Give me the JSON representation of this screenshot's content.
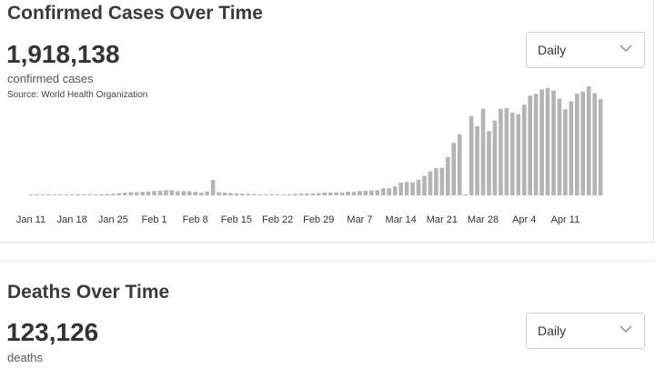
{
  "cases_section": {
    "title": "Confirmed Cases Over Time",
    "total": "1,918,138",
    "total_label": "confirmed cases",
    "source": "Source:  World Health Organization",
    "dropdown_value": "Daily"
  },
  "deaths_section": {
    "title": "Deaths Over Time",
    "total": "123,126",
    "total_label": "deaths",
    "dropdown_value": "Daily"
  },
  "colors": {
    "bar": "#b4b4b4",
    "baseline": "#cccccc"
  },
  "chart_data": {
    "type": "bar",
    "title": "Confirmed Cases Over Time",
    "xlabel": "",
    "ylabel": "",
    "x_start": "Jan 11",
    "x_end": "Apr 14",
    "ylim": [
      0,
      102000
    ],
    "grid": false,
    "legend": "none",
    "tick_labels": [
      {
        "label": "Jan 11",
        "index": 0
      },
      {
        "label": "Jan 18",
        "index": 7
      },
      {
        "label": "Jan 25",
        "index": 14
      },
      {
        "label": "Feb 1",
        "index": 21
      },
      {
        "label": "Feb 8",
        "index": 28
      },
      {
        "label": "Feb 15",
        "index": 35
      },
      {
        "label": "Feb 22",
        "index": 42
      },
      {
        "label": "Feb 29",
        "index": 49
      },
      {
        "label": "Mar 7",
        "index": 56
      },
      {
        "label": "Mar 14",
        "index": 63
      },
      {
        "label": "Mar 21",
        "index": 70
      },
      {
        "label": "Mar 28",
        "index": 77
      },
      {
        "label": "Apr 4",
        "index": 84
      },
      {
        "label": "Apr 11",
        "index": 91
      }
    ],
    "values": [
      0,
      0,
      0,
      0,
      0,
      0,
      0,
      0,
      0,
      0,
      500,
      600,
      800,
      1200,
      1500,
      2000,
      2500,
      2900,
      3000,
      3300,
      3500,
      4000,
      4300,
      4800,
      4800,
      3800,
      3900,
      3900,
      3200,
      2500,
      3600,
      14500,
      3000,
      2500,
      2100,
      1800,
      1600,
      1500,
      1200,
      700,
      700,
      700,
      600,
      800,
      1000,
      1400,
      1600,
      1600,
      1800,
      2100,
      2600,
      2600,
      2800,
      2600,
      3400,
      3300,
      4000,
      4500,
      4500,
      4800,
      6600,
      6700,
      8400,
      11800,
      12500,
      12100,
      14800,
      18200,
      22500,
      25500,
      25800,
      35900,
      49100,
      57000,
      1000,
      74100,
      64700,
      81000,
      60000,
      70000,
      81000,
      81500,
      77500,
      76000,
      84800,
      93300,
      95000,
      99000,
      100500,
      98000,
      90500,
      80500,
      88000,
      95200,
      97000,
      102000,
      95500,
      90000
    ]
  }
}
